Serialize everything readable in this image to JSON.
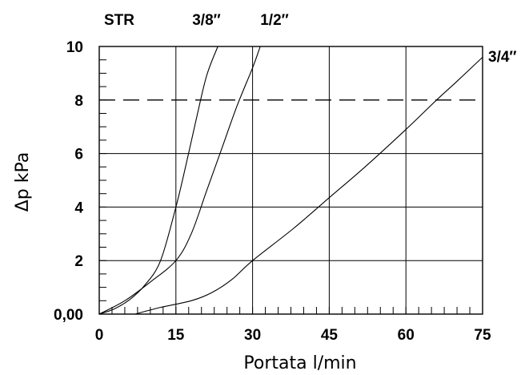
{
  "chart_data": {
    "type": "line",
    "title": "STR",
    "xlabel": "Portata l/min",
    "ylabel": "Δp kPa",
    "xlim": [
      0,
      75
    ],
    "ylim": [
      0,
      10
    ],
    "x_ticks": [
      "0",
      "15",
      "30",
      "45",
      "60",
      "75"
    ],
    "y_ticks": [
      "0,00",
      "2",
      "4",
      "6",
      "8",
      "10"
    ],
    "x_tick_values": [
      0,
      15,
      30,
      45,
      60,
      75
    ],
    "y_tick_values": [
      0,
      2,
      4,
      6,
      8,
      10
    ],
    "x_minor_step": 2.5,
    "y_minor_step": 0.5,
    "grid": true,
    "reference_line": {
      "y": 8,
      "style": "dashed"
    },
    "series": [
      {
        "name": "3/8″",
        "points": [
          [
            0,
            0
          ],
          [
            3,
            0.2
          ],
          [
            6,
            0.55
          ],
          [
            9,
            1.1
          ],
          [
            12,
            2.0
          ],
          [
            15,
            4.0
          ],
          [
            17,
            5.6
          ],
          [
            19,
            7.3
          ],
          [
            21,
            8.9
          ],
          [
            23.2,
            10
          ]
        ]
      },
      {
        "name": "1/2″",
        "points": [
          [
            0,
            0
          ],
          [
            5,
            0.5
          ],
          [
            10,
            1.2
          ],
          [
            15,
            2.0
          ],
          [
            18,
            3.0
          ],
          [
            21,
            4.6
          ],
          [
            24,
            6.2
          ],
          [
            27,
            7.8
          ],
          [
            30,
            9.2
          ],
          [
            31.5,
            10
          ]
        ]
      },
      {
        "name": "3/4″",
        "points": [
          [
            7,
            0
          ],
          [
            12,
            0.25
          ],
          [
            18,
            0.5
          ],
          [
            22,
            0.8
          ],
          [
            26,
            1.3
          ],
          [
            30,
            2.0
          ],
          [
            38,
            3.2
          ],
          [
            45,
            4.35
          ],
          [
            52,
            5.5
          ],
          [
            60,
            6.9
          ],
          [
            66,
            8.0
          ],
          [
            70,
            8.7
          ],
          [
            75,
            9.6
          ]
        ]
      }
    ]
  }
}
